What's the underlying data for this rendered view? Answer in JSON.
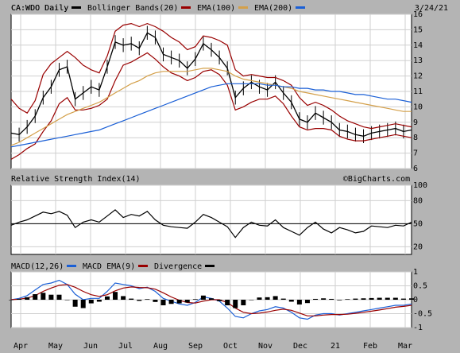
{
  "header": {
    "symbol": "CA:WDO Daily",
    "date": "3/24/21",
    "credit": "©BigCharts.com"
  },
  "colors": {
    "price": "#000000",
    "bollinger": "#990000",
    "ema100": "#d4a04a",
    "ema200": "#1a5fd6",
    "panel_bg": "#ffffff",
    "grid": "#cfcfcf",
    "frame_bg": "#b4b4b4"
  },
  "chart_data": [
    {
      "type": "line",
      "panel": "price",
      "legend": [
        {
          "label": "CA:WDO Daily",
          "color": "#000000"
        },
        {
          "label": "Bollinger Bands(20)",
          "color": "#990000"
        },
        {
          "label": "EMA(100)",
          "color": "#d4a04a"
        },
        {
          "label": "EMA(200)",
          "color": "#1a5fd6"
        }
      ],
      "x_ticks": [
        "Apr",
        "May",
        "Jun",
        "Jul",
        "Aug",
        "Sep",
        "Oct",
        "Nov",
        "Dec",
        "21",
        "Feb",
        "Mar"
      ],
      "y_ticks": [
        6,
        7,
        8,
        9,
        10,
        11,
        12,
        13,
        14,
        15,
        16
      ],
      "ylim": [
        6,
        16
      ],
      "x_index": [
        0,
        5,
        10,
        15,
        20,
        25,
        30,
        35,
        40,
        45,
        50,
        55,
        60,
        65,
        70,
        75,
        80,
        85,
        90,
        95,
        100,
        105,
        110,
        115,
        120,
        125,
        130,
        135,
        140,
        145,
        150,
        155,
        160,
        165,
        170,
        175,
        180,
        185,
        190,
        195,
        200,
        205,
        210,
        215,
        220,
        225,
        230,
        235,
        240,
        245,
        250
      ],
      "series": [
        {
          "name": "CA:WDO Daily",
          "values": [
            8.3,
            8.2,
            8.7,
            9.4,
            10.6,
            11.3,
            12.4,
            12.6,
            10.5,
            10.9,
            11.3,
            11.1,
            12.6,
            14.2,
            14.0,
            14.1,
            13.8,
            14.8,
            14.5,
            13.4,
            13.2,
            13.0,
            12.5,
            13.1,
            14.1,
            13.7,
            13.2,
            12.5,
            10.6,
            11.2,
            11.6,
            11.3,
            11.1,
            11.6,
            10.9,
            10.3,
            9.2,
            9.0,
            9.6,
            9.3,
            9.0,
            8.5,
            8.4,
            8.2,
            8.1,
            8.3,
            8.4,
            8.5,
            8.6,
            8.4,
            8.5
          ]
        },
        {
          "name": "Bollinger Bands(20)",
          "values": [
            10.5,
            9.9,
            9.6,
            10.4,
            12.1,
            12.8,
            13.2,
            13.6,
            13.2,
            12.7,
            12.4,
            12.2,
            13.3,
            14.9,
            15.3,
            15.4,
            15.2,
            15.4,
            15.2,
            14.9,
            14.5,
            14.2,
            13.7,
            13.9,
            14.6,
            14.5,
            14.3,
            14.0,
            12.4,
            12.0,
            12.1,
            12.0,
            11.9,
            11.9,
            11.7,
            11.4,
            10.6,
            10.1,
            10.3,
            10.1,
            9.8,
            9.4,
            9.1,
            8.9,
            8.7,
            8.6,
            8.7,
            8.8,
            8.9,
            8.8,
            8.7
          ]
        },
        {
          "name": "Bollinger Bands(20)",
          "values": [
            6.6,
            6.9,
            7.3,
            7.6,
            8.4,
            9.1,
            10.2,
            10.6,
            9.8,
            9.8,
            9.9,
            10.1,
            10.5,
            11.7,
            12.7,
            12.9,
            13.2,
            13.5,
            13.1,
            12.6,
            12.2,
            12.0,
            11.7,
            11.9,
            12.3,
            12.4,
            12.1,
            11.4,
            9.8,
            10.0,
            10.3,
            10.5,
            10.5,
            10.7,
            10.2,
            9.4,
            8.7,
            8.5,
            8.6,
            8.6,
            8.5,
            8.1,
            7.9,
            7.8,
            7.8,
            7.9,
            8.0,
            8.1,
            8.2,
            8.1,
            8.0
          ]
        },
        {
          "name": "EMA(100)",
          "values": [
            7.5,
            7.7,
            8.0,
            8.3,
            8.6,
            8.9,
            9.2,
            9.5,
            9.7,
            9.9,
            10.1,
            10.3,
            10.6,
            10.9,
            11.2,
            11.5,
            11.7,
            12.0,
            12.2,
            12.3,
            12.3,
            12.3,
            12.3,
            12.4,
            12.5,
            12.5,
            12.4,
            12.3,
            12.0,
            11.8,
            11.7,
            11.6,
            11.5,
            11.4,
            11.3,
            11.2,
            11.0,
            10.9,
            10.8,
            10.7,
            10.6,
            10.5,
            10.4,
            10.3,
            10.2,
            10.1,
            10.0,
            9.9,
            9.8,
            9.7,
            9.7
          ]
        },
        {
          "name": "EMA(200)",
          "values": [
            7.4,
            7.5,
            7.6,
            7.7,
            7.8,
            7.9,
            8.0,
            8.1,
            8.2,
            8.3,
            8.4,
            8.5,
            8.7,
            8.9,
            9.1,
            9.3,
            9.5,
            9.7,
            9.9,
            10.1,
            10.3,
            10.5,
            10.7,
            10.9,
            11.1,
            11.3,
            11.4,
            11.5,
            11.5,
            11.5,
            11.5,
            11.5,
            11.4,
            11.4,
            11.3,
            11.3,
            11.2,
            11.2,
            11.1,
            11.1,
            11.0,
            11.0,
            10.9,
            10.8,
            10.8,
            10.7,
            10.6,
            10.5,
            10.5,
            10.4,
            10.3
          ]
        }
      ]
    },
    {
      "type": "line",
      "panel": "rsi",
      "title": "Relative Strength Index(14)",
      "y_ticks": [
        20,
        50,
        80,
        100
      ],
      "ylim": [
        10,
        100
      ],
      "reference_line": 50,
      "x_index": [
        0,
        5,
        10,
        15,
        20,
        25,
        30,
        35,
        40,
        45,
        50,
        55,
        60,
        65,
        70,
        75,
        80,
        85,
        90,
        95,
        100,
        105,
        110,
        115,
        120,
        125,
        130,
        135,
        140,
        145,
        150,
        155,
        160,
        165,
        170,
        175,
        180,
        185,
        190,
        195,
        200,
        205,
        210,
        215,
        220,
        225,
        230,
        235,
        240,
        245,
        250
      ],
      "series": [
        {
          "name": "Relative Strength Index(14)",
          "values": [
            48,
            52,
            55,
            60,
            65,
            63,
            66,
            61,
            45,
            52,
            55,
            52,
            60,
            68,
            58,
            62,
            60,
            66,
            55,
            48,
            46,
            45,
            44,
            52,
            62,
            58,
            52,
            46,
            32,
            45,
            52,
            48,
            47,
            55,
            45,
            40,
            35,
            45,
            52,
            43,
            38,
            45,
            42,
            38,
            40,
            47,
            46,
            45,
            48,
            47,
            52
          ]
        }
      ]
    },
    {
      "type": "line",
      "panel": "macd",
      "legend": [
        {
          "label": "MACD(12,26)",
          "color": "#1a5fd6"
        },
        {
          "label": "MACD EMA(9)",
          "color": "#990000"
        },
        {
          "label": "Divergence",
          "color": "#000000"
        }
      ],
      "y_ticks": [
        -1.0,
        -0.5,
        0.0,
        0.5,
        1.0
      ],
      "ylim": [
        -1.0,
        1.0
      ],
      "x_index": [
        0,
        5,
        10,
        15,
        20,
        25,
        30,
        35,
        40,
        45,
        50,
        55,
        60,
        65,
        70,
        75,
        80,
        85,
        90,
        95,
        100,
        105,
        110,
        115,
        120,
        125,
        130,
        135,
        140,
        145,
        150,
        155,
        160,
        165,
        170,
        175,
        180,
        185,
        190,
        195,
        200,
        205,
        210,
        215,
        220,
        225,
        230,
        235,
        240,
        245,
        250
      ],
      "series": [
        {
          "name": "MACD(12,26)",
          "values": [
            0.0,
            0.05,
            0.15,
            0.35,
            0.55,
            0.6,
            0.7,
            0.55,
            0.2,
            0.0,
            0.05,
            0.05,
            0.3,
            0.6,
            0.55,
            0.5,
            0.4,
            0.45,
            0.3,
            0.05,
            -0.05,
            -0.15,
            -0.2,
            -0.1,
            0.1,
            0.05,
            -0.05,
            -0.3,
            -0.6,
            -0.65,
            -0.5,
            -0.4,
            -0.35,
            -0.25,
            -0.3,
            -0.45,
            -0.65,
            -0.7,
            -0.55,
            -0.5,
            -0.5,
            -0.55,
            -0.5,
            -0.45,
            -0.4,
            -0.35,
            -0.3,
            -0.25,
            -0.2,
            -0.2,
            -0.15
          ]
        },
        {
          "name": "MACD EMA(9)",
          "values": [
            0.0,
            0.02,
            0.06,
            0.15,
            0.3,
            0.42,
            0.52,
            0.55,
            0.45,
            0.3,
            0.18,
            0.12,
            0.18,
            0.32,
            0.42,
            0.46,
            0.44,
            0.43,
            0.38,
            0.25,
            0.1,
            -0.02,
            -0.1,
            -0.12,
            -0.05,
            0.0,
            0.0,
            -0.1,
            -0.3,
            -0.45,
            -0.5,
            -0.48,
            -0.44,
            -0.38,
            -0.34,
            -0.38,
            -0.48,
            -0.58,
            -0.58,
            -0.55,
            -0.53,
            -0.53,
            -0.52,
            -0.49,
            -0.45,
            -0.41,
            -0.37,
            -0.32,
            -0.27,
            -0.24,
            -0.2
          ]
        },
        {
          "name": "Divergence",
          "values": [
            0.0,
            0.03,
            0.09,
            0.2,
            0.25,
            0.18,
            0.18,
            0.0,
            -0.25,
            -0.3,
            -0.13,
            -0.07,
            0.12,
            0.28,
            0.13,
            0.04,
            -0.04,
            0.02,
            -0.08,
            -0.2,
            -0.15,
            -0.13,
            -0.1,
            0.02,
            0.15,
            0.05,
            -0.05,
            -0.2,
            -0.3,
            -0.2,
            0.0,
            0.08,
            0.09,
            0.13,
            0.04,
            -0.07,
            -0.17,
            -0.12,
            0.03,
            0.05,
            0.03,
            -0.02,
            0.02,
            0.04,
            0.05,
            0.06,
            0.07,
            0.07,
            0.07,
            0.04,
            0.05
          ]
        }
      ]
    }
  ]
}
